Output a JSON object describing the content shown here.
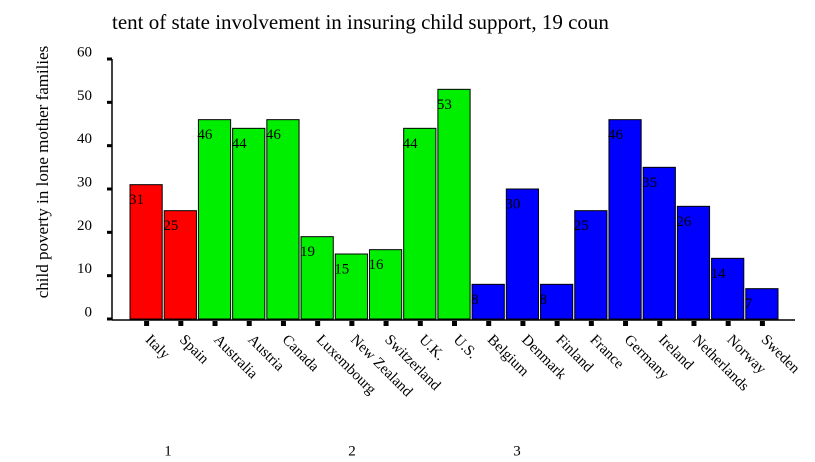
{
  "chart_data": {
    "type": "bar",
    "title": "tent of state involvement in insuring child support, 19 coun",
    "y_label": "child poverty in lone mother families",
    "categories": [
      "Italy",
      "Spain",
      "Australia",
      "Austria",
      "Canada",
      "Luxembourg",
      "New Zealand",
      "Switzerland",
      "U.K.",
      "U.S.",
      "Belgium",
      "Denmark",
      "Finland",
      "France",
      "Germany",
      "Ireland",
      "Netherlands",
      "Norway",
      "Sweden"
    ],
    "values": [
      31,
      25,
      46,
      44,
      46,
      19,
      15,
      16,
      44,
      53,
      8,
      30,
      8,
      25,
      46,
      35,
      26,
      14,
      7
    ],
    "colors": [
      "#ff0000",
      "#ff0000",
      "#00ee00",
      "#00ee00",
      "#00ee00",
      "#00ee00",
      "#00ee00",
      "#00ee00",
      "#00ee00",
      "#00ee00",
      "#0000ff",
      "#0000ff",
      "#0000ff",
      "#0000ff",
      "#0000ff",
      "#0000ff",
      "#0000ff",
      "#0000ff",
      "#0000ff"
    ],
    "group_labels": [
      "1",
      "2",
      "3"
    ],
    "ylim": [
      0,
      60
    ],
    "yticks": [
      0,
      10,
      20,
      30,
      40,
      50,
      60
    ],
    "grid": false
  }
}
